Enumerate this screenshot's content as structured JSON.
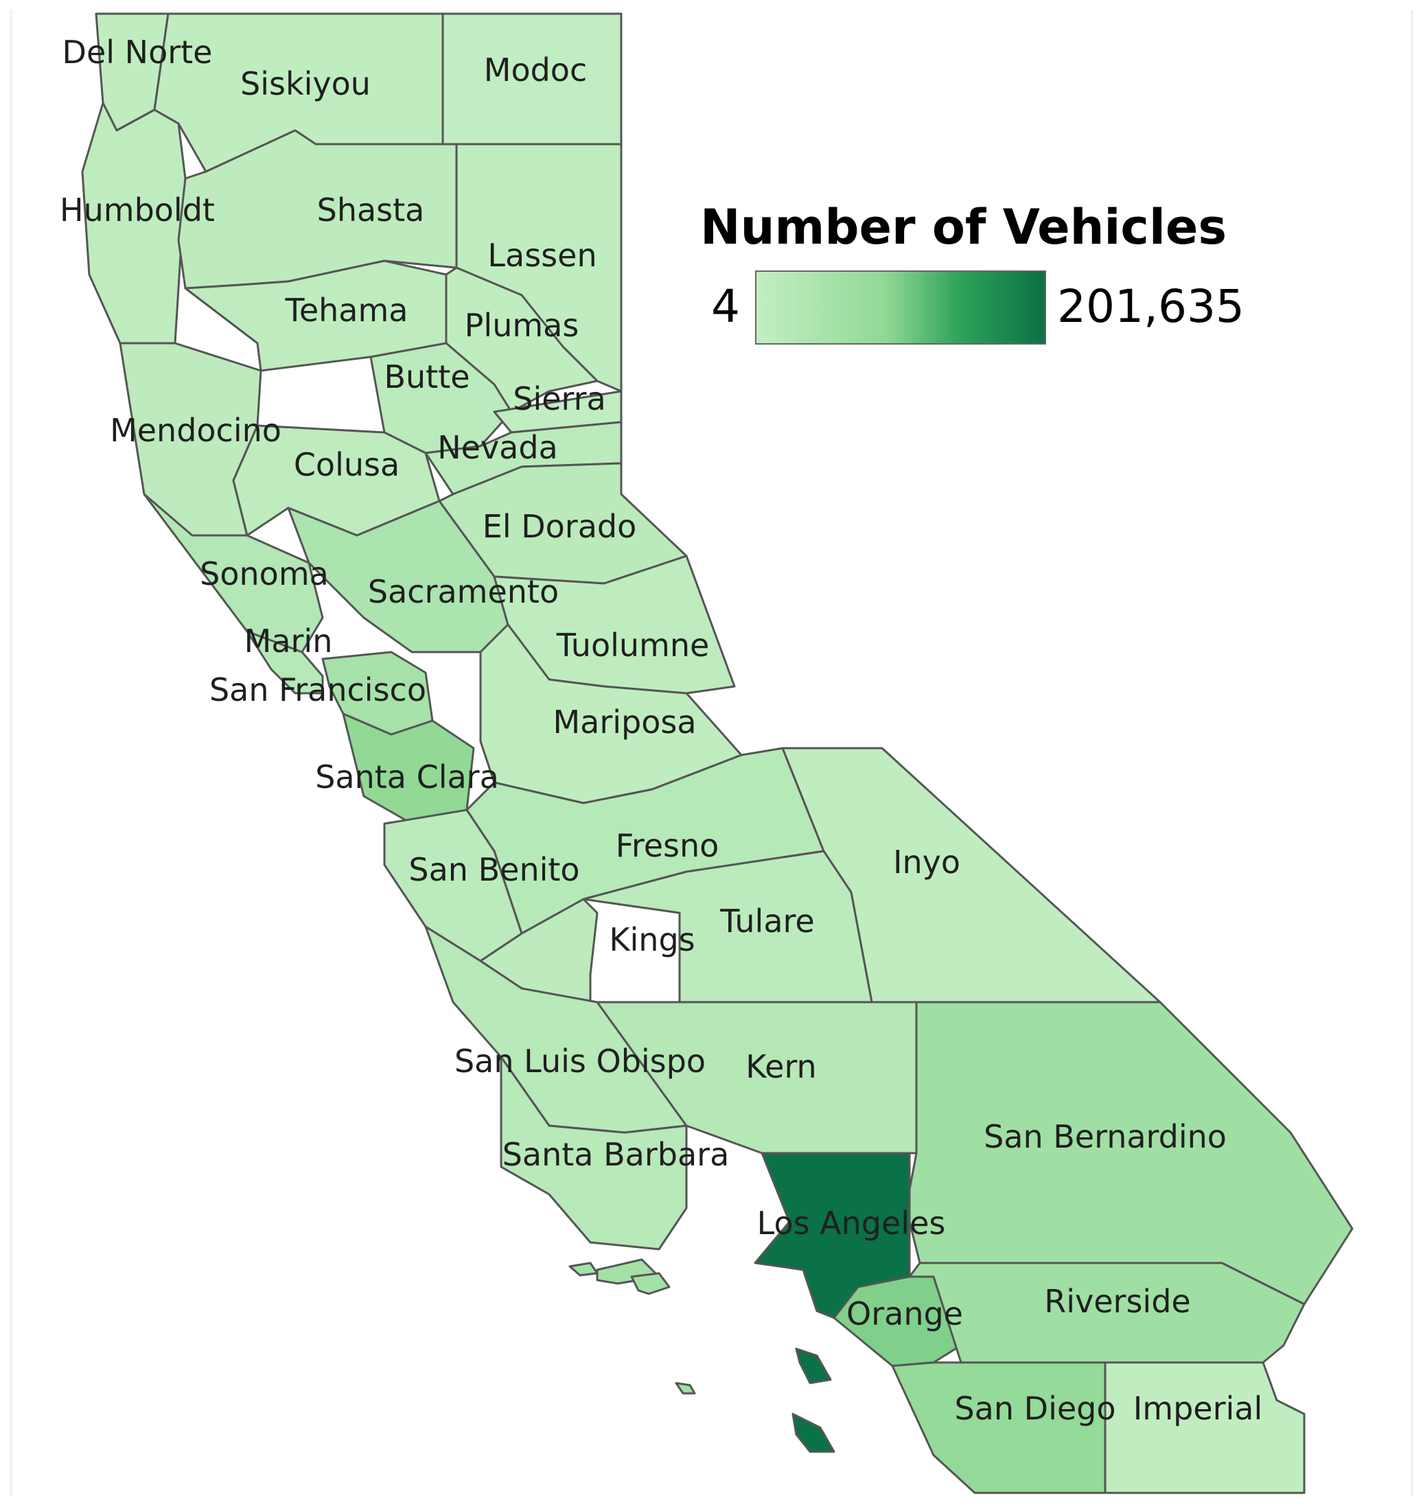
{
  "legend": {
    "title": "Number of Vehicles",
    "min_label": "4",
    "max_label": "201,635",
    "min_value": 4,
    "max_value": 201635,
    "colors": [
      "#c3eec3",
      "#8fd894",
      "#2fa35a",
      "#0b7146"
    ]
  },
  "chart_data": {
    "type": "heatmap",
    "regions": [
      {
        "name": "Del Norte",
        "level": 0.02
      },
      {
        "name": "Siskiyou",
        "level": 0.02
      },
      {
        "name": "Modoc",
        "level": 0.01
      },
      {
        "name": "Humboldt",
        "level": 0.03
      },
      {
        "name": "Shasta",
        "level": 0.04
      },
      {
        "name": "Lassen",
        "level": 0.02
      },
      {
        "name": "Tehama",
        "level": 0.03
      },
      {
        "name": "Plumas",
        "level": 0.02
      },
      {
        "name": "Butte",
        "level": 0.05
      },
      {
        "name": "Sierra",
        "level": 0.01
      },
      {
        "name": "Mendocino",
        "level": 0.04
      },
      {
        "name": "Colusa",
        "level": 0.03
      },
      {
        "name": "Nevada",
        "level": 0.05
      },
      {
        "name": "El Dorado",
        "level": 0.06
      },
      {
        "name": "Sonoma",
        "level": 0.1
      },
      {
        "name": "Sacramento",
        "level": 0.15
      },
      {
        "name": "Marin",
        "level": 0.08
      },
      {
        "name": "Tuolumne",
        "level": 0.03
      },
      {
        "name": "San Francisco",
        "level": 0.18
      },
      {
        "name": "Mariposa",
        "level": 0.02
      },
      {
        "name": "Santa Clara",
        "level": 0.32
      },
      {
        "name": "Fresno",
        "level": 0.08
      },
      {
        "name": "Inyo",
        "level": 0.02
      },
      {
        "name": "San Benito",
        "level": 0.05
      },
      {
        "name": "Kings",
        "level": 0.04
      },
      {
        "name": "Tulare",
        "level": 0.05
      },
      {
        "name": "San Luis Obispo",
        "level": 0.07
      },
      {
        "name": "Kern",
        "level": 0.09
      },
      {
        "name": "San Bernardino",
        "level": 0.22
      },
      {
        "name": "Santa Barbara",
        "level": 0.07
      },
      {
        "name": "Los Angeles",
        "level": 1.0
      },
      {
        "name": "Orange",
        "level": 0.38
      },
      {
        "name": "Riverside",
        "level": 0.22
      },
      {
        "name": "San Diego",
        "level": 0.3
      },
      {
        "name": "Imperial",
        "level": 0.02
      }
    ]
  }
}
